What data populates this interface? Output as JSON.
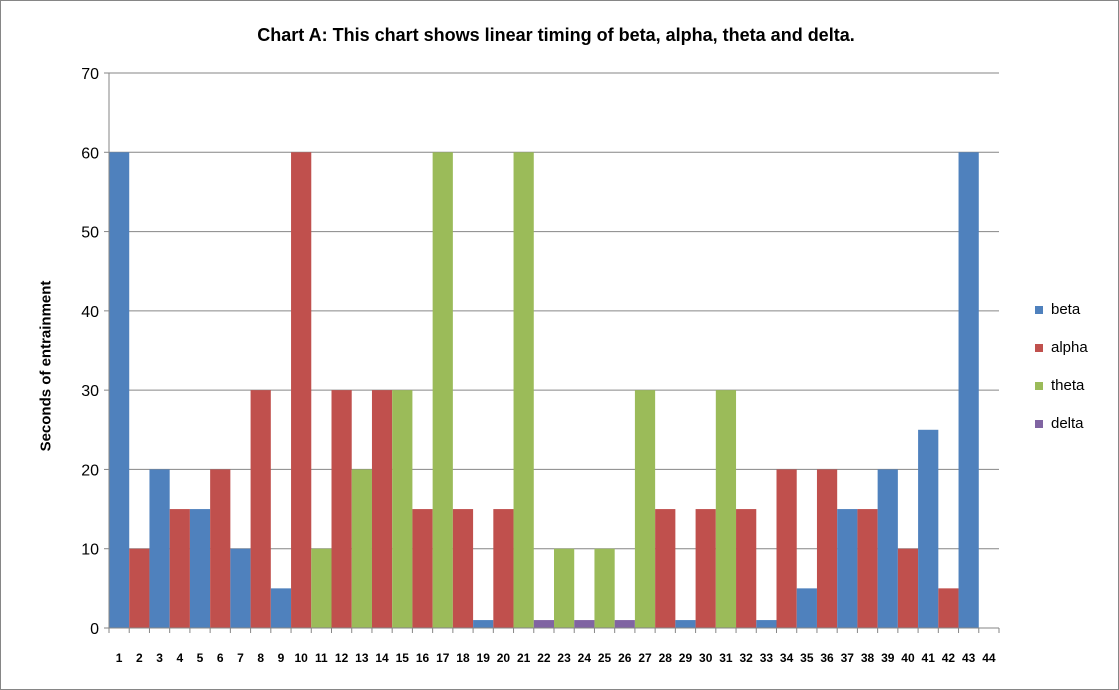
{
  "chart_data": {
    "type": "bar",
    "title": "Chart A: This chart shows linear  timing of beta, alpha, theta and delta.",
    "xlabel": "",
    "ylabel": "Seconds of entrainment",
    "ylim": [
      0,
      70
    ],
    "yticks": [
      0,
      10,
      20,
      30,
      40,
      50,
      60,
      70
    ],
    "grid": "horizontal",
    "legend_position": "right",
    "categories": [
      "1",
      "2",
      "3",
      "4",
      "5",
      "6",
      "7",
      "8",
      "9",
      "10",
      "11",
      "12",
      "13",
      "14",
      "15",
      "16",
      "17",
      "18",
      "19",
      "20",
      "21",
      "22",
      "23",
      "24",
      "25",
      "26",
      "27",
      "28",
      "29",
      "30",
      "31",
      "32",
      "33",
      "34",
      "35",
      "36",
      "37",
      "38",
      "39",
      "40",
      "41",
      "42",
      "43",
      "44"
    ],
    "series": [
      {
        "name": "beta",
        "color": "#4F81BD"
      },
      {
        "name": "alpha",
        "color": "#C0504D"
      },
      {
        "name": "theta",
        "color": "#9BBB59"
      },
      {
        "name": "delta",
        "color": "#8064A2"
      }
    ],
    "bars": [
      {
        "category": "1",
        "series": "beta",
        "value": 60
      },
      {
        "category": "2",
        "series": "alpha",
        "value": 10
      },
      {
        "category": "3",
        "series": "beta",
        "value": 20
      },
      {
        "category": "4",
        "series": "alpha",
        "value": 15
      },
      {
        "category": "5",
        "series": "beta",
        "value": 15
      },
      {
        "category": "6",
        "series": "alpha",
        "value": 20
      },
      {
        "category": "7",
        "series": "beta",
        "value": 10
      },
      {
        "category": "8",
        "series": "alpha",
        "value": 30
      },
      {
        "category": "9",
        "series": "beta",
        "value": 5
      },
      {
        "category": "10",
        "series": "alpha",
        "value": 60
      },
      {
        "category": "11",
        "series": "theta",
        "value": 10
      },
      {
        "category": "12",
        "series": "alpha",
        "value": 30
      },
      {
        "category": "13",
        "series": "theta",
        "value": 20
      },
      {
        "category": "14",
        "series": "alpha",
        "value": 30
      },
      {
        "category": "15",
        "series": "theta",
        "value": 30
      },
      {
        "category": "16",
        "series": "alpha",
        "value": 15
      },
      {
        "category": "17",
        "series": "theta",
        "value": 60
      },
      {
        "category": "18",
        "series": "alpha",
        "value": 15
      },
      {
        "category": "19",
        "series": "beta",
        "value": 1
      },
      {
        "category": "20",
        "series": "alpha",
        "value": 15
      },
      {
        "category": "21",
        "series": "theta",
        "value": 60
      },
      {
        "category": "22",
        "series": "delta",
        "value": 1
      },
      {
        "category": "23",
        "series": "theta",
        "value": 10
      },
      {
        "category": "24",
        "series": "delta",
        "value": 1
      },
      {
        "category": "25",
        "series": "theta",
        "value": 10
      },
      {
        "category": "26",
        "series": "delta",
        "value": 1
      },
      {
        "category": "27",
        "series": "theta",
        "value": 30
      },
      {
        "category": "28",
        "series": "alpha",
        "value": 15
      },
      {
        "category": "29",
        "series": "beta",
        "value": 1
      },
      {
        "category": "30",
        "series": "alpha",
        "value": 15
      },
      {
        "category": "31",
        "series": "theta",
        "value": 30
      },
      {
        "category": "32",
        "series": "alpha",
        "value": 15
      },
      {
        "category": "33",
        "series": "beta",
        "value": 1
      },
      {
        "category": "34",
        "series": "alpha",
        "value": 20
      },
      {
        "category": "35",
        "series": "beta",
        "value": 5
      },
      {
        "category": "36",
        "series": "alpha",
        "value": 20
      },
      {
        "category": "37",
        "series": "beta",
        "value": 15
      },
      {
        "category": "38",
        "series": "alpha",
        "value": 15
      },
      {
        "category": "39",
        "series": "beta",
        "value": 20
      },
      {
        "category": "40",
        "series": "alpha",
        "value": 10
      },
      {
        "category": "41",
        "series": "beta",
        "value": 25
      },
      {
        "category": "42",
        "series": "alpha",
        "value": 5
      },
      {
        "category": "43",
        "series": "beta",
        "value": 60
      }
    ]
  }
}
